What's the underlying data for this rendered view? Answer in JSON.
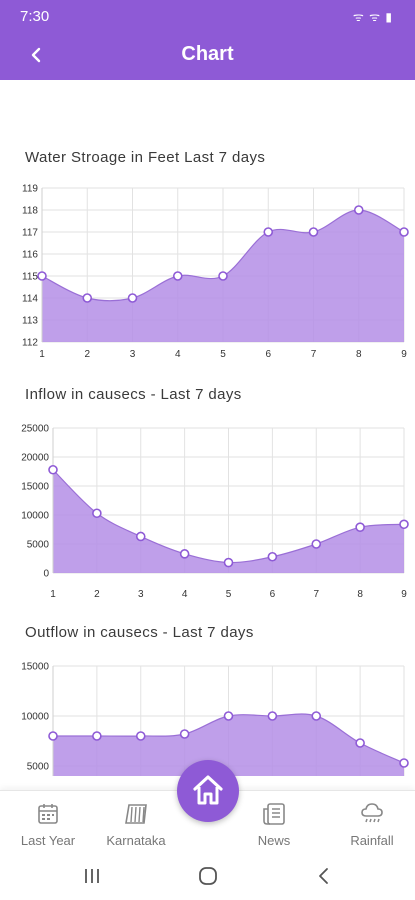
{
  "status_bar": {
    "time": "7:30",
    "icons": "ᯤ ᯤ ▮"
  },
  "app_bar": {
    "title": "Chart",
    "back_icon": "chevron-left-icon"
  },
  "charts": {
    "storage_title": "Water Stroage in Feet Last 7 days",
    "inflow_title": "Inflow in causecs - Last 7 days",
    "outflow_title": "Outflow in causecs - Last 7 days"
  },
  "chart_data": [
    {
      "type": "area",
      "title": "Water Stroage in Feet Last 7 days",
      "x": [
        1,
        2,
        3,
        4,
        5,
        6,
        7,
        8,
        9
      ],
      "y": [
        115,
        114,
        114,
        115,
        115,
        117,
        117,
        118,
        117
      ],
      "y_ticks": [
        112,
        113,
        114,
        115,
        116,
        117,
        118,
        119
      ],
      "ylim": [
        112,
        119
      ],
      "grid": true,
      "color": "#b48ee6"
    },
    {
      "type": "area",
      "title": "Inflow in causecs - Last 7 days",
      "x": [
        1,
        2,
        3,
        4,
        5,
        6,
        7,
        8,
        9
      ],
      "y": [
        17800,
        10300,
        6300,
        3300,
        1800,
        2800,
        5000,
        7900,
        8400
      ],
      "y_ticks": [
        0,
        5000,
        10000,
        15000,
        20000,
        25000
      ],
      "ylim": [
        0,
        25000
      ],
      "grid": true,
      "color": "#b48ee6"
    },
    {
      "type": "area",
      "title": "Outflow in causecs - Last 7 days",
      "x": [
        1,
        2,
        3,
        4,
        5,
        6,
        7,
        8,
        9
      ],
      "y": [
        8000,
        8000,
        8000,
        8200,
        10000,
        10000,
        10000,
        7300,
        5300
      ],
      "y_ticks": [
        5000,
        10000,
        15000
      ],
      "ylim": [
        4000,
        15000
      ],
      "grid": true,
      "color": "#b48ee6"
    }
  ],
  "bottom_nav": {
    "items": [
      {
        "label": "Last Year",
        "icon": "calendar-icon"
      },
      {
        "label": "Karnataka",
        "icon": "dam-icon"
      },
      {
        "label": "News",
        "icon": "newspaper-icon"
      },
      {
        "label": "Rainfall",
        "icon": "rain-cloud-icon"
      }
    ],
    "home_icon": "home-icon"
  },
  "system_nav": {
    "recents": "recents-icon",
    "home": "home-circle-icon",
    "back": "back-icon"
  }
}
